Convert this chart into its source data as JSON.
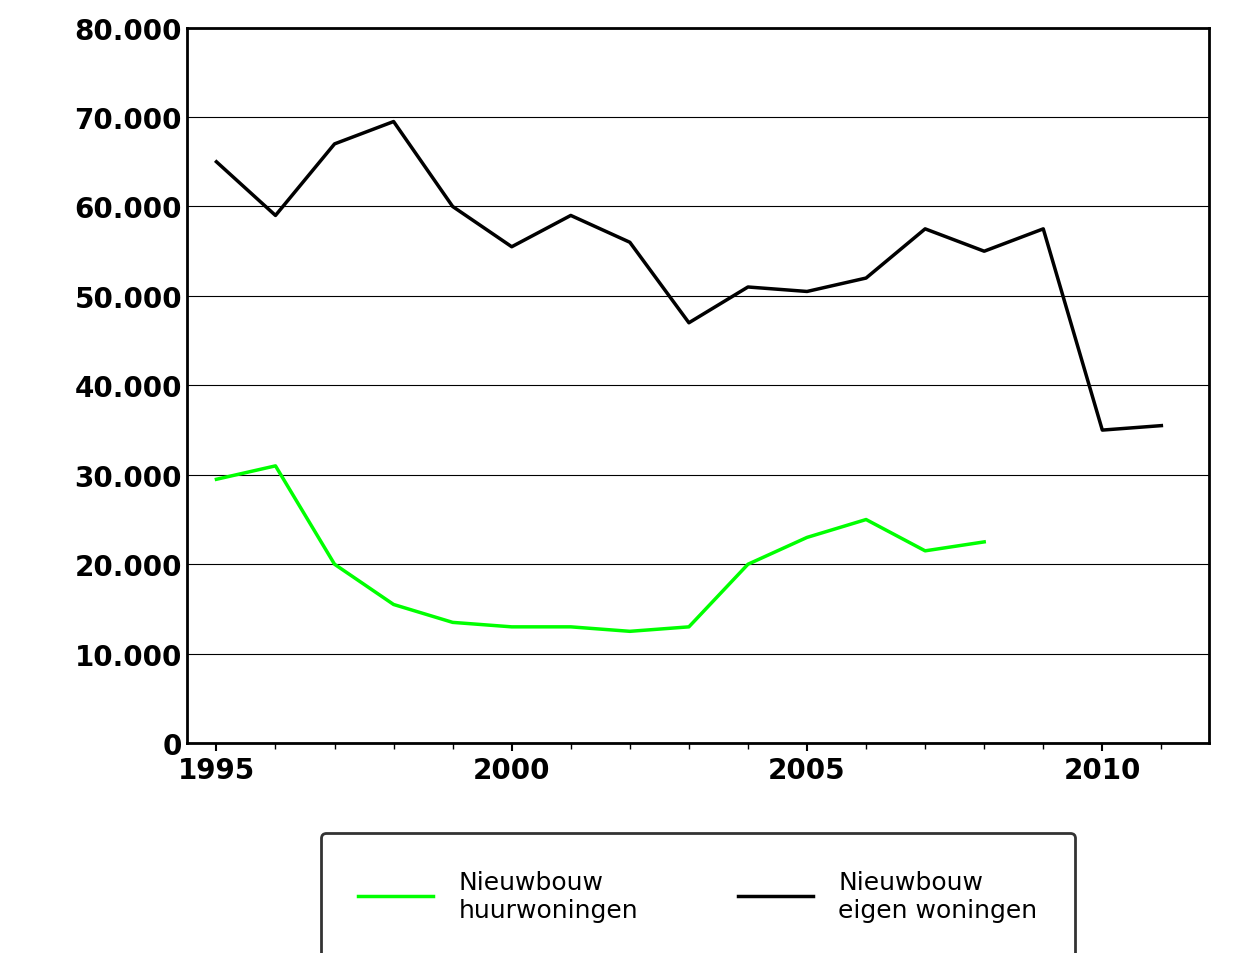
{
  "huur_years": [
    1995,
    1996,
    1997,
    1998,
    1999,
    2000,
    2001,
    2002,
    2003,
    2004,
    2005,
    2006,
    2007,
    2008
  ],
  "huur_values": [
    29500,
    31000,
    20000,
    15500,
    13500,
    13000,
    13000,
    12500,
    13000,
    20000,
    23000,
    25000,
    21500,
    22500
  ],
  "eigen_years": [
    1995,
    1996,
    1997,
    1998,
    1999,
    2000,
    2001,
    2002,
    2003,
    2004,
    2005,
    2006,
    2007,
    2008,
    2009,
    2010,
    2011
  ],
  "eigen_values": [
    65000,
    59000,
    67000,
    69500,
    60000,
    55500,
    59000,
    56000,
    47000,
    51000,
    50500,
    52000,
    57500,
    55000,
    57500,
    35000,
    35500
  ],
  "huur_color": "#00ff00",
  "eigen_color": "#000000",
  "ylim": [
    0,
    80000
  ],
  "yticks": [
    0,
    10000,
    20000,
    30000,
    40000,
    50000,
    60000,
    70000,
    80000
  ],
  "xlim": [
    1994.5,
    2011.8
  ],
  "xticks": [
    1995,
    2000,
    2005,
    2010
  ],
  "legend_label_huur": "Nieuwbouw\nhuurwoningen",
  "legend_label_eigen": "Nieuwbouw\neigen woningen",
  "line_width": 2.5,
  "background_color": "#ffffff",
  "grid_color": "#000000",
  "tick_fontsize": 20,
  "legend_fontsize": 18
}
